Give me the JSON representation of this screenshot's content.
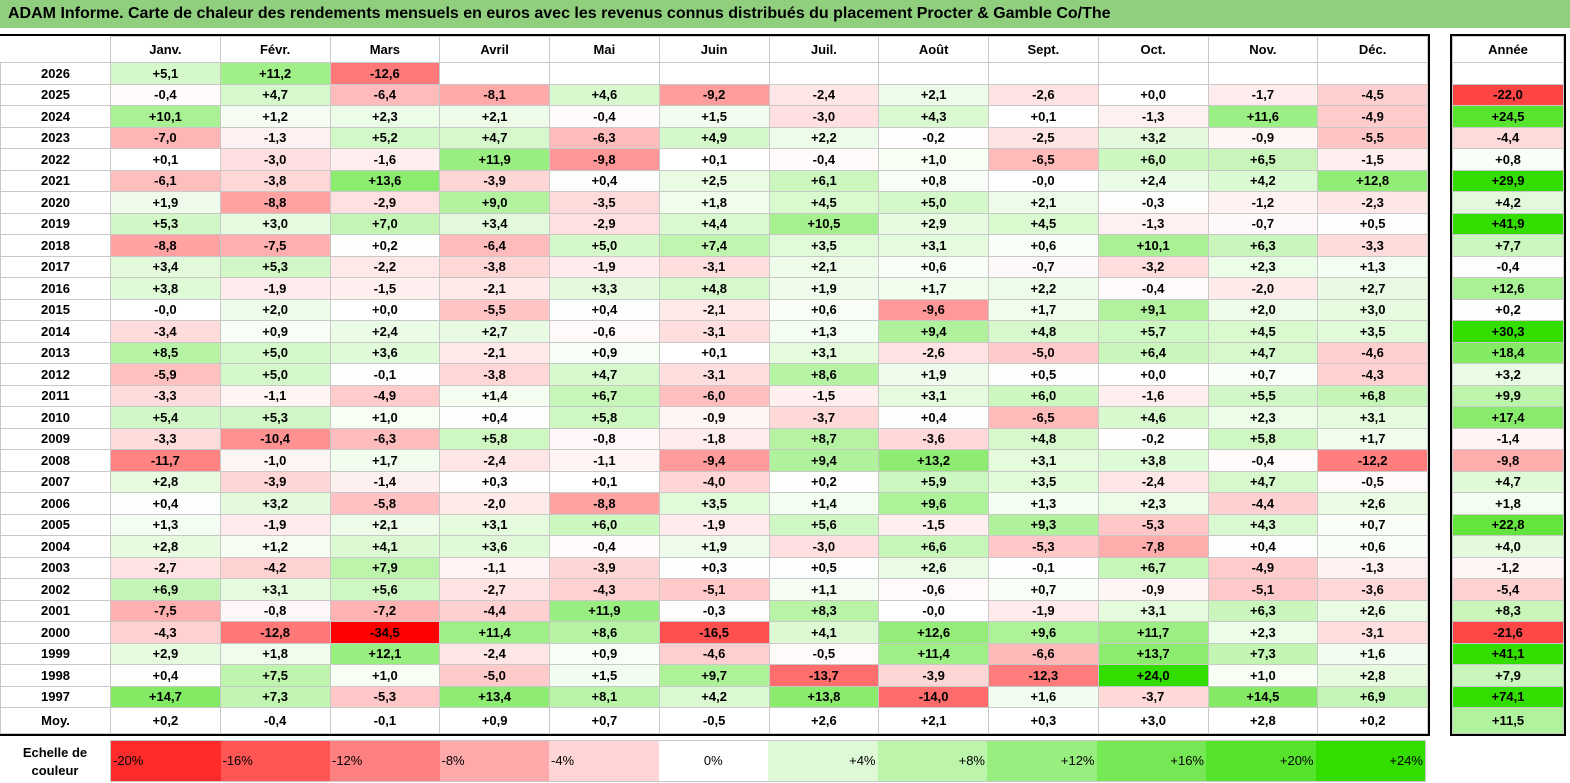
{
  "title": "ADAM Informe. Carte de chaleur des rendements mensuels en euros avec les revenus connus distribués du placement Procter & Gamble Co/The",
  "chart_data": {
    "type": "heatmap",
    "months": [
      "Janv.",
      "Févr.",
      "Mars",
      "Avril",
      "Mai",
      "Juin",
      "Juil.",
      "Août",
      "Sept.",
      "Oct.",
      "Nov.",
      "Déc."
    ],
    "year_header": "Année",
    "rows": [
      {
        "year": "2026",
        "values": [
          "+5,1",
          "+11,2",
          "-12,6",
          "",
          "",
          "",
          "",
          "",
          "",
          "",
          "",
          ""
        ],
        "annual": ""
      },
      {
        "year": "2025",
        "values": [
          "-0,4",
          "+4,7",
          "-6,4",
          "-8,1",
          "+4,6",
          "-9,2",
          "-2,4",
          "+2,1",
          "-2,6",
          "+0,0",
          "-1,7",
          "-4,5"
        ],
        "annual": "-22,0"
      },
      {
        "year": "2024",
        "values": [
          "+10,1",
          "+1,2",
          "+2,3",
          "+2,1",
          "-0,4",
          "+1,5",
          "-3,0",
          "+4,3",
          "+0,1",
          "-1,3",
          "+11,6",
          "-4,9"
        ],
        "annual": "+24,5"
      },
      {
        "year": "2023",
        "values": [
          "-7,0",
          "-1,3",
          "+5,2",
          "+4,7",
          "-6,3",
          "+4,9",
          "+2,2",
          "-0,2",
          "-2,5",
          "+3,2",
          "-0,9",
          "-5,5"
        ],
        "annual": "-4,4"
      },
      {
        "year": "2022",
        "values": [
          "+0,1",
          "-3,0",
          "-1,6",
          "+11,9",
          "-9,8",
          "+0,1",
          "-0,4",
          "+1,0",
          "-6,5",
          "+6,0",
          "+6,5",
          "-1,5"
        ],
        "annual": "+0,8"
      },
      {
        "year": "2021",
        "values": [
          "-6,1",
          "-3,8",
          "+13,6",
          "-3,9",
          "+0,4",
          "+2,5",
          "+6,1",
          "+0,8",
          "-0,0",
          "+2,4",
          "+4,2",
          "+12,8"
        ],
        "annual": "+29,9"
      },
      {
        "year": "2020",
        "values": [
          "+1,9",
          "-8,8",
          "-2,9",
          "+9,0",
          "-3,5",
          "+1,8",
          "+4,5",
          "+5,0",
          "+2,1",
          "-0,3",
          "-1,2",
          "-2,3"
        ],
        "annual": "+4,2"
      },
      {
        "year": "2019",
        "values": [
          "+5,3",
          "+3,0",
          "+7,0",
          "+3,4",
          "-2,9",
          "+4,4",
          "+10,5",
          "+2,9",
          "+4,5",
          "-1,3",
          "-0,7",
          "+0,5"
        ],
        "annual": "+41,9"
      },
      {
        "year": "2018",
        "values": [
          "-8,8",
          "-7,5",
          "+0,2",
          "-6,4",
          "+5,0",
          "+7,4",
          "+3,5",
          "+3,1",
          "+0,6",
          "+10,1",
          "+6,3",
          "-3,3"
        ],
        "annual": "+7,7"
      },
      {
        "year": "2017",
        "values": [
          "+3,4",
          "+5,3",
          "-2,2",
          "-3,8",
          "-1,9",
          "-3,1",
          "+2,1",
          "+0,6",
          "-0,7",
          "-3,2",
          "+2,3",
          "+1,3"
        ],
        "annual": "-0,4"
      },
      {
        "year": "2016",
        "values": [
          "+3,8",
          "-1,9",
          "-1,5",
          "-2,1",
          "+3,3",
          "+4,8",
          "+1,9",
          "+1,7",
          "+2,2",
          "-0,4",
          "-2,0",
          "+2,7"
        ],
        "annual": "+12,6"
      },
      {
        "year": "2015",
        "values": [
          "-0,0",
          "+2,0",
          "+0,0",
          "-5,5",
          "+0,4",
          "-2,1",
          "+0,6",
          "-9,6",
          "+1,7",
          "+9,1",
          "+2,0",
          "+3,0"
        ],
        "annual": "+0,2"
      },
      {
        "year": "2014",
        "values": [
          "-3,4",
          "+0,9",
          "+2,4",
          "+2,7",
          "-0,6",
          "-3,1",
          "+1,3",
          "+9,4",
          "+4,8",
          "+5,7",
          "+4,5",
          "+3,5"
        ],
        "annual": "+30,3"
      },
      {
        "year": "2013",
        "values": [
          "+8,5",
          "+5,0",
          "+3,6",
          "-2,1",
          "+0,9",
          "+0,1",
          "+3,1",
          "-2,6",
          "-5,0",
          "+6,4",
          "+4,7",
          "-4,6"
        ],
        "annual": "+18,4"
      },
      {
        "year": "2012",
        "values": [
          "-5,9",
          "+5,0",
          "-0,1",
          "-3,8",
          "+4,7",
          "-3,1",
          "+8,6",
          "+1,9",
          "+0,5",
          "+0,0",
          "+0,7",
          "-4,3"
        ],
        "annual": "+3,2"
      },
      {
        "year": "2011",
        "values": [
          "-3,3",
          "-1,1",
          "-4,9",
          "+1,4",
          "+6,7",
          "-6,0",
          "-1,5",
          "+3,1",
          "+6,0",
          "-1,6",
          "+5,5",
          "+6,8"
        ],
        "annual": "+9,9"
      },
      {
        "year": "2010",
        "values": [
          "+5,4",
          "+5,3",
          "+1,0",
          "+0,4",
          "+5,8",
          "-0,9",
          "-3,7",
          "+0,4",
          "-6,5",
          "+4,6",
          "+2,3",
          "+3,1"
        ],
        "annual": "+17,4"
      },
      {
        "year": "2009",
        "values": [
          "-3,3",
          "-10,4",
          "-6,3",
          "+5,8",
          "-0,8",
          "-1,8",
          "+8,7",
          "-3,6",
          "+4,8",
          "-0,2",
          "+5,8",
          "+1,7"
        ],
        "annual": "-1,4"
      },
      {
        "year": "2008",
        "values": [
          "-11,7",
          "-1,0",
          "+1,7",
          "-2,4",
          "-1,1",
          "-9,4",
          "+9,4",
          "+13,2",
          "+3,1",
          "+3,8",
          "-0,4",
          "-12,2"
        ],
        "annual": "-9,8"
      },
      {
        "year": "2007",
        "values": [
          "+2,8",
          "-3,9",
          "-1,4",
          "+0,3",
          "+0,1",
          "-4,0",
          "+0,2",
          "+5,9",
          "+3,5",
          "-2,4",
          "+4,7",
          "-0,5"
        ],
        "annual": "+4,7"
      },
      {
        "year": "2006",
        "values": [
          "+0,4",
          "+3,2",
          "-5,8",
          "-2,0",
          "-8,8",
          "+3,5",
          "+1,4",
          "+9,6",
          "+1,3",
          "+2,3",
          "-4,4",
          "+2,6"
        ],
        "annual": "+1,8"
      },
      {
        "year": "2005",
        "values": [
          "+1,3",
          "-1,9",
          "+2,1",
          "+3,1",
          "+6,0",
          "-1,9",
          "+5,6",
          "-1,5",
          "+9,3",
          "-5,3",
          "+4,3",
          "+0,7"
        ],
        "annual": "+22,8"
      },
      {
        "year": "2004",
        "values": [
          "+2,8",
          "+1,2",
          "+4,1",
          "+3,6",
          "-0,4",
          "+1,9",
          "-3,0",
          "+6,6",
          "-5,3",
          "-7,8",
          "+0,4",
          "+0,6"
        ],
        "annual": "+4,0"
      },
      {
        "year": "2003",
        "values": [
          "-2,7",
          "-4,2",
          "+7,9",
          "-1,1",
          "-3,9",
          "+0,3",
          "+0,5",
          "+2,6",
          "-0,1",
          "+6,7",
          "-4,9",
          "-1,3"
        ],
        "annual": "-1,2"
      },
      {
        "year": "2002",
        "values": [
          "+6,9",
          "+3,1",
          "+5,6",
          "-2,7",
          "-4,3",
          "-5,1",
          "+1,1",
          "-0,6",
          "+0,7",
          "-0,9",
          "-5,1",
          "-3,6"
        ],
        "annual": "-5,4"
      },
      {
        "year": "2001",
        "values": [
          "-7,5",
          "-0,8",
          "-7,2",
          "-4,4",
          "+11,9",
          "-0,3",
          "+8,3",
          "-0,0",
          "-1,9",
          "+3,1",
          "+6,3",
          "+2,6"
        ],
        "annual": "+8,3"
      },
      {
        "year": "2000",
        "values": [
          "-4,3",
          "-12,8",
          "-34,5",
          "+11,4",
          "+8,6",
          "-16,5",
          "+4,1",
          "+12,6",
          "+9,6",
          "+11,7",
          "+2,3",
          "-3,1"
        ],
        "annual": "-21,6"
      },
      {
        "year": "1999",
        "values": [
          "+2,9",
          "+1,8",
          "+12,1",
          "-2,4",
          "+0,9",
          "-4,6",
          "-0,5",
          "+11,4",
          "-6,6",
          "+13,7",
          "+7,3",
          "+1,6"
        ],
        "annual": "+41,1"
      },
      {
        "year": "1998",
        "values": [
          "+0,4",
          "+7,5",
          "+1,0",
          "-5,0",
          "+1,5",
          "+9,7",
          "-13,7",
          "-3,9",
          "-12,3",
          "+24,0",
          "+1,0",
          "+2,8"
        ],
        "annual": "+7,9"
      },
      {
        "year": "1997",
        "values": [
          "+14,7",
          "+7,3",
          "-5,3",
          "+13,4",
          "+8,1",
          "+4,2",
          "+13,8",
          "-14,0",
          "+1,6",
          "-3,7",
          "+14,5",
          "+6,9"
        ],
        "annual": "+74,1"
      }
    ],
    "average": {
      "label": "Moy.",
      "values": [
        "+0,2",
        "-0,4",
        "-0,1",
        "+0,9",
        "+0,7",
        "-0,5",
        "+2,6",
        "+2,1",
        "+0,3",
        "+3,0",
        "+2,8",
        "+0,2"
      ],
      "annual": "+11,5"
    },
    "legend": {
      "label": "Echelle de couleur",
      "steps": [
        {
          "text": "-20%",
          "value": -20,
          "align": "left"
        },
        {
          "text": "-16%",
          "value": -16,
          "align": "left"
        },
        {
          "text": "-12%",
          "value": -12,
          "align": "left"
        },
        {
          "text": "-8%",
          "value": -8,
          "align": "left"
        },
        {
          "text": "-4%",
          "value": -4,
          "align": "left"
        },
        {
          "text": "0%",
          "value": 0,
          "align": "center"
        },
        {
          "text": "+4%",
          "value": 4,
          "align": "right"
        },
        {
          "text": "+8%",
          "value": 8,
          "align": "right"
        },
        {
          "text": "+12%",
          "value": 12,
          "align": "right"
        },
        {
          "text": "+16%",
          "value": 16,
          "align": "right"
        },
        {
          "text": "+20%",
          "value": 20,
          "align": "right"
        },
        {
          "text": "+24%",
          "value": 24,
          "align": "right"
        }
      ]
    },
    "colors": {
      "negative": "#ff0000",
      "positive": "#33dd00",
      "neutral": "#ffffff",
      "title_bg": "#8fcf7e"
    }
  }
}
